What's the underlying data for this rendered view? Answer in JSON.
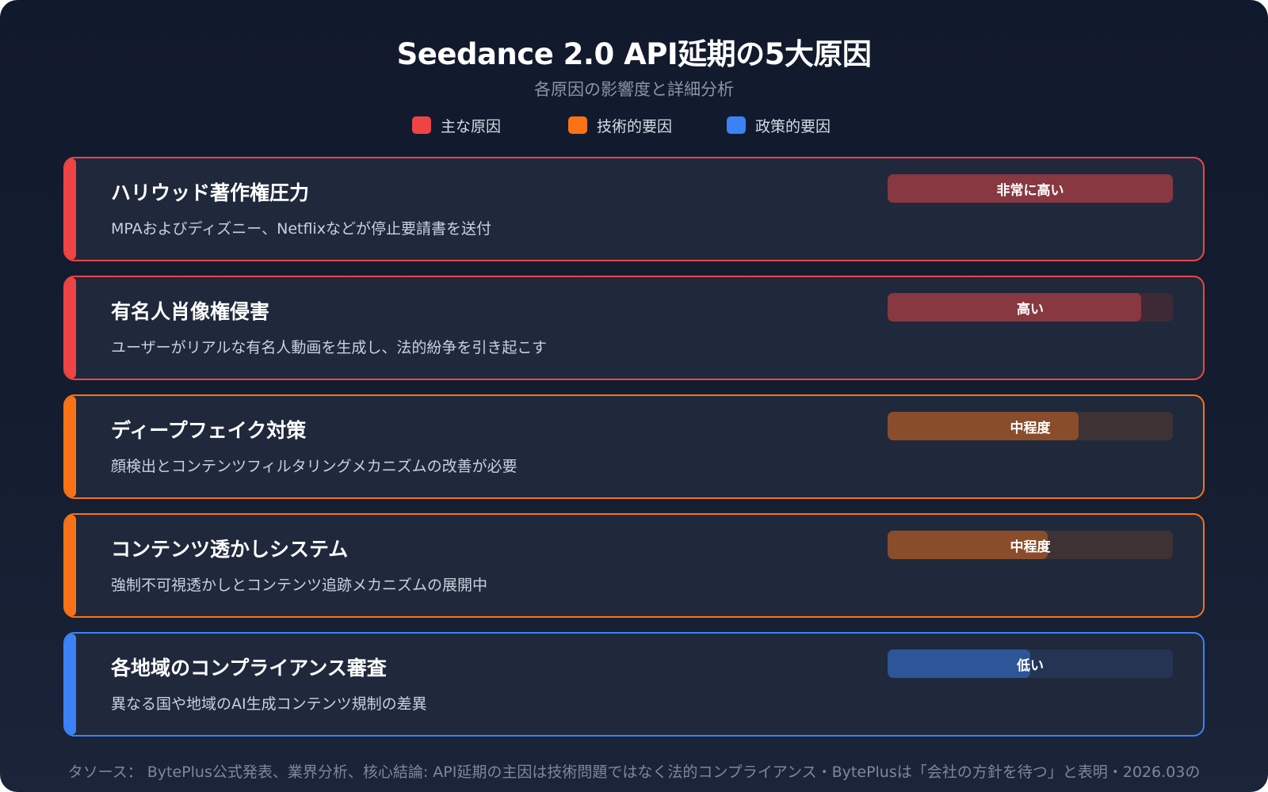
{
  "header": {
    "title": "Seedance 2.0 API延期の5大原因",
    "subtitle": "各原因の影響度と詳細分析"
  },
  "legend": [
    {
      "label": "主な原因",
      "color": "#ef4444"
    },
    {
      "label": "技術的要因",
      "color": "#f97316"
    },
    {
      "label": "政策的要因",
      "color": "#3b82f6"
    }
  ],
  "causes": [
    {
      "title": "ハリウッド著作権圧力",
      "description": "MPAおよびディズニー、Netflixなどが停止要請書を送付",
      "category": "主な原因",
      "color": "#ef4444",
      "impact_label": "非常に高い",
      "impact_percent": 100,
      "bar_fill_color": "#873840",
      "bar_track_color": "#3d2a36"
    },
    {
      "title": "有名人肖像権侵害",
      "description": "ユーザーがリアルな有名人動画を生成し、法的紛争を引き起こす",
      "category": "主な原因",
      "color": "#ef4444",
      "impact_label": "高い",
      "impact_percent": 89,
      "bar_fill_color": "#873840",
      "bar_track_color": "#3d2a36"
    },
    {
      "title": "ディープフェイク対策",
      "description": "顔検出とコンテンツフィルタリングメカニズムの改善が必要",
      "category": "技術的要因",
      "color": "#f97316",
      "impact_label": "中程度",
      "impact_percent": 67,
      "bar_fill_color": "#8a4d2b",
      "bar_track_color": "#3e3234"
    },
    {
      "title": "コンテンツ透かしシステム",
      "description": "強制不可視透かしとコンテンツ追跡メカニズムの展開中",
      "category": "技術的要因",
      "color": "#f97316",
      "impact_label": "中程度",
      "impact_percent": 56,
      "bar_fill_color": "#8a4d2b",
      "bar_track_color": "#3e3234"
    },
    {
      "title": "各地域のコンプライアンス審査",
      "description": "異なる国や地域のAI生成コンテンツ規制の差異",
      "category": "政策的要因",
      "color": "#3b82f6",
      "impact_label": "低い",
      "impact_percent": 50,
      "bar_fill_color": "#2d5597",
      "bar_track_color": "#233553"
    }
  ],
  "footer": {
    "text": "タソース： BytePlus公式発表、業界分析、核心結論: API延期の主因は技術問題ではなく法的コンプライアンス・BytePlusは「会社の方針を待つ」と表明・2026.03の"
  }
}
